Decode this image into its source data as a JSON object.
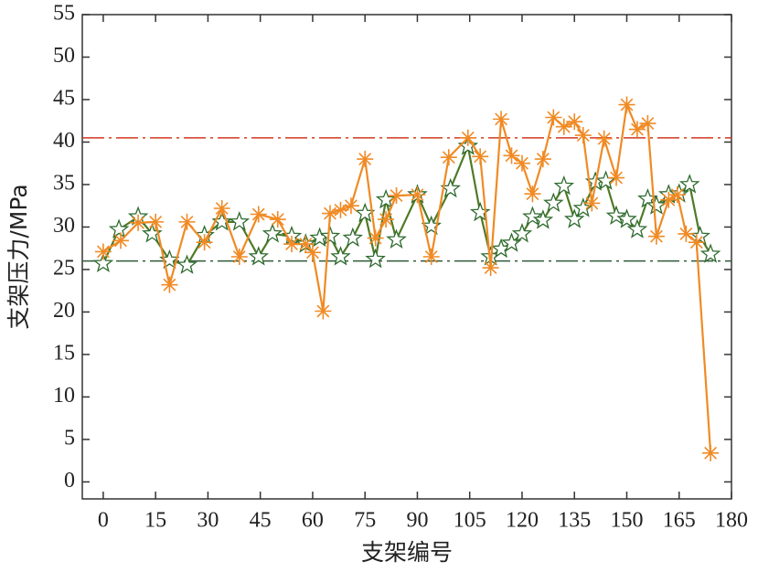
{
  "chart_data": {
    "type": "line",
    "xlabel": "支架编号",
    "ylabel": "支架压力/MPa",
    "xlim": [
      -6,
      180
    ],
    "ylim": [
      -2,
      55
    ],
    "xticks": [
      0,
      15,
      30,
      45,
      60,
      75,
      90,
      105,
      120,
      135,
      150,
      165,
      180
    ],
    "yticks": [
      0,
      5,
      10,
      15,
      20,
      25,
      30,
      35,
      40,
      45,
      50,
      55
    ],
    "hlines": [
      {
        "value": 40.5,
        "color": "#d23a1e"
      },
      {
        "value": 26,
        "color": "#2f5a3a"
      }
    ],
    "series": [
      {
        "color": "#f08a24",
        "marker": "asterisk",
        "x": [
          0,
          5,
          10,
          15,
          19,
          24,
          29,
          34,
          39,
          44.5,
          50,
          54,
          58,
          60,
          63,
          65,
          68,
          71,
          75,
          78,
          81,
          84,
          90,
          94,
          99,
          104.5,
          108,
          111,
          114,
          117,
          120,
          123,
          126,
          129,
          132,
          135,
          137.5,
          140,
          143.5,
          147,
          150,
          153,
          156,
          158.5,
          162,
          164.5,
          167,
          170,
          174
        ],
        "values": [
          27.1,
          28.4,
          30.5,
          30.6,
          23.2,
          30.6,
          28.2,
          32.2,
          26.5,
          31.5,
          30.9,
          28,
          28,
          27,
          20.1,
          31.6,
          32,
          32.5,
          38,
          28.7,
          30.9,
          33.7,
          33.8,
          26.5,
          38.2,
          40.5,
          38.3,
          25.2,
          42.7,
          38.4,
          37.5,
          33.9,
          38,
          42.9,
          41.8,
          42.4,
          40.8,
          32.8,
          40.4,
          35.8,
          44.4,
          41.5,
          42.2,
          28.9,
          33.2,
          33.8,
          29.2,
          28.2,
          3.4
        ]
      },
      {
        "color": "#4f7a26",
        "marker": "star",
        "x": [
          0,
          4.5,
          10,
          14,
          19,
          24,
          29,
          34,
          39,
          44.5,
          48.5,
          54,
          58,
          62,
          65,
          68,
          71.5,
          75,
          78,
          81,
          84,
          90,
          94,
          99.5,
          104.5,
          108,
          111,
          114,
          117,
          120,
          123,
          126,
          129,
          132,
          135,
          137.5,
          141,
          144,
          147,
          150,
          153,
          156,
          158.5,
          162,
          165,
          168,
          171,
          174
        ],
        "values": [
          25.7,
          29.7,
          31.2,
          29.2,
          26.1,
          25.5,
          29,
          30.6,
          30.6,
          26.5,
          29.2,
          28.9,
          28,
          28.7,
          28.9,
          26.5,
          28.7,
          31.6,
          26.2,
          33.2,
          28.5,
          33.8,
          30.1,
          34.5,
          39.5,
          31.7,
          26.5,
          27.4,
          28.1,
          29.2,
          31.2,
          30.8,
          32.8,
          34.8,
          30.9,
          32.2,
          35.3,
          35.4,
          31.3,
          30.9,
          29.7,
          33.3,
          32.5,
          33.8,
          33.9,
          35,
          28.9,
          26.8
        ]
      }
    ]
  }
}
